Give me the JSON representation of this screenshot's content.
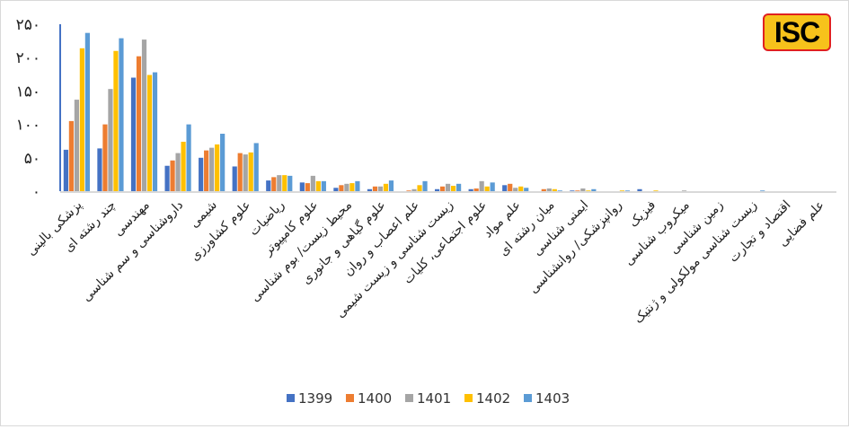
{
  "logo": {
    "text": "ISC",
    "colors": {
      "fill": "#f7c21b",
      "border": "#e02020",
      "text": "#000000"
    }
  },
  "chart_data": {
    "type": "bar",
    "title": "",
    "xlabel": "",
    "ylabel": "",
    "ylim": [
      0,
      250
    ],
    "yticks": [
      0,
      50,
      100,
      150,
      200,
      250
    ],
    "ytick_labels": [
      "۰",
      "۵۰",
      "۱۰۰",
      "۱۵۰",
      "۲۰۰",
      "۲۵۰"
    ],
    "grid": false,
    "legend_position": "bottom",
    "categories": [
      "پزشکی بالینی",
      "چند رشته ای",
      "مهندسی",
      "داروشناسی و سم شناسی",
      "شیمی",
      "علوم کشاورزی",
      "ریاضیات",
      "علوم کامپیوتر",
      "محیط زیست/ بوم شناسی",
      "علوم گیاهی و جانوری",
      "علم اعصاب و روان",
      "زیست شناسی و زیست شیمی",
      "علوم اجتماعی، کلیات",
      "علم مواد",
      "میان رشته ای",
      "ایمنی شناسی",
      "روانپزشکی/ روانشناسی",
      "فیزیک",
      "میکروب شناسی",
      "زمین شناسی",
      "زیست شناسی مولکولی و ژنتیک",
      "اقتصاد و تجارت",
      "علم فضایی"
    ],
    "series": [
      {
        "name": "1399",
        "color": "#4472c4",
        "values": [
          62,
          64,
          170,
          38,
          50,
          37,
          16,
          13,
          5,
          3,
          0,
          3,
          3,
          9,
          0,
          1,
          0,
          3,
          0,
          0,
          0,
          0,
          0
        ]
      },
      {
        "name": "1400",
        "color": "#ed7d31",
        "values": [
          105,
          100,
          202,
          46,
          61,
          57,
          21,
          12,
          9,
          7,
          1,
          7,
          4,
          11,
          3,
          1,
          0,
          0,
          0,
          0,
          0,
          0,
          0
        ]
      },
      {
        "name": "1401",
        "color": "#a5a5a5",
        "values": [
          137,
          153,
          227,
          57,
          65,
          55,
          24,
          23,
          11,
          7,
          3,
          11,
          15,
          5,
          4,
          4,
          0,
          0,
          1,
          0,
          0,
          0,
          0
        ]
      },
      {
        "name": "1402",
        "color": "#ffc000",
        "values": [
          214,
          210,
          174,
          74,
          70,
          58,
          24,
          15,
          12,
          11,
          9,
          8,
          7,
          7,
          3,
          1,
          1,
          1,
          0,
          0,
          0,
          0,
          0
        ]
      },
      {
        "name": "1403",
        "color": "#5b9bd5",
        "values": [
          237,
          229,
          178,
          100,
          86,
          72,
          23,
          15,
          15,
          16,
          15,
          11,
          13,
          5,
          1,
          3,
          1,
          0,
          0,
          0,
          1,
          0,
          0
        ]
      }
    ]
  }
}
